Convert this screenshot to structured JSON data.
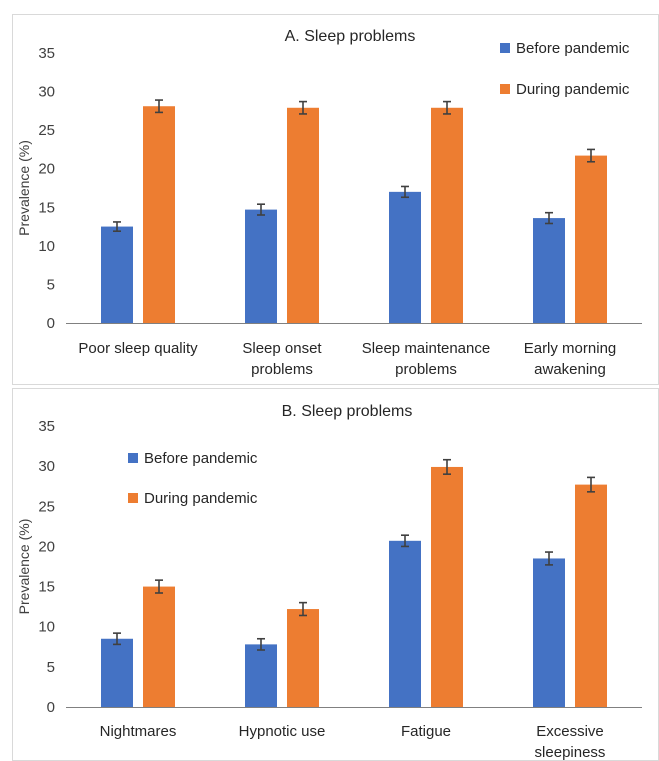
{
  "chart_data": [
    {
      "type": "bar",
      "title": "A. Sleep problems",
      "ylabel": "Prevalence (%)",
      "ylim": [
        0,
        35
      ],
      "yticks": [
        0,
        5,
        10,
        15,
        20,
        25,
        30,
        35
      ],
      "categories": [
        [
          "Poor sleep quality"
        ],
        [
          "Sleep onset",
          "problems"
        ],
        [
          "Sleep maintenance",
          "problems"
        ],
        [
          "Early morning",
          "awakening"
        ]
      ],
      "legend_position": "top-right",
      "series": [
        {
          "name": "Before pandemic",
          "color": "#4472c4",
          "values": [
            12.5,
            14.7,
            17.0,
            13.6
          ],
          "errors": [
            0.6,
            0.7,
            0.7,
            0.7
          ]
        },
        {
          "name": "During pandemic",
          "color": "#ed7d31",
          "values": [
            28.1,
            27.9,
            27.9,
            21.7
          ],
          "errors": [
            0.8,
            0.8,
            0.8,
            0.8
          ]
        }
      ]
    },
    {
      "type": "bar",
      "title": "B. Sleep problems",
      "ylabel": "Prevalence (%)",
      "ylim": [
        0,
        35
      ],
      "yticks": [
        0,
        5,
        10,
        15,
        20,
        25,
        30,
        35
      ],
      "categories": [
        [
          "Nightmares"
        ],
        [
          "Hypnotic use"
        ],
        [
          "Fatigue"
        ],
        [
          "Excessive",
          "sleepiness"
        ]
      ],
      "legend_position": "top-left",
      "series": [
        {
          "name": "Before pandemic",
          "color": "#4472c4",
          "values": [
            8.5,
            7.8,
            20.7,
            18.5
          ],
          "errors": [
            0.7,
            0.7,
            0.7,
            0.8
          ]
        },
        {
          "name": "During pandemic",
          "color": "#ed7d31",
          "values": [
            15.0,
            12.2,
            29.9,
            27.7
          ],
          "errors": [
            0.8,
            0.8,
            0.9,
            0.9
          ]
        }
      ]
    }
  ]
}
